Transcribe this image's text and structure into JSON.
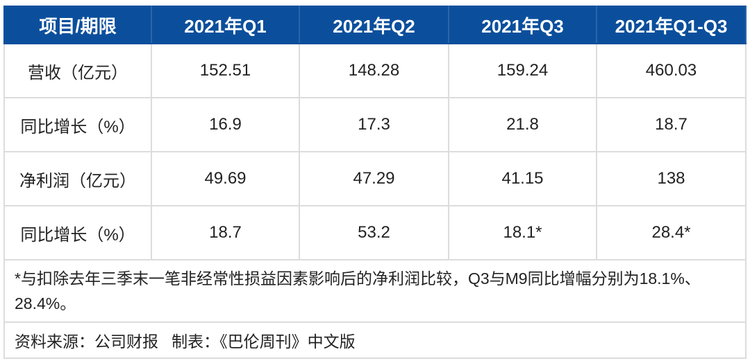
{
  "chart_data": {
    "type": "table",
    "columns": [
      "项目/期限",
      "2021年Q1",
      "2021年Q2",
      "2021年Q3",
      "2021年Q1-Q3"
    ],
    "rows": [
      [
        "营收（亿元）",
        "152.51",
        "148.28",
        "159.24",
        "460.03"
      ],
      [
        "同比增长（%）",
        "16.9",
        "17.3",
        "21.8",
        "18.7"
      ],
      [
        "净利润（亿元）",
        "49.69",
        "47.29",
        "41.15",
        "138"
      ],
      [
        "同比增长（%）",
        "18.7",
        "53.2",
        "18.1*",
        "28.4*"
      ]
    ],
    "footnote": "*与扣除去年三季末一笔非经常性损益因素影响后的净利润比较，Q3与M9同比增幅分别为18.1%、28.4%。",
    "source": "资料来源：公司财报   制表：《巴伦周刊》中文版",
    "header_color": "#0b4f9c"
  }
}
